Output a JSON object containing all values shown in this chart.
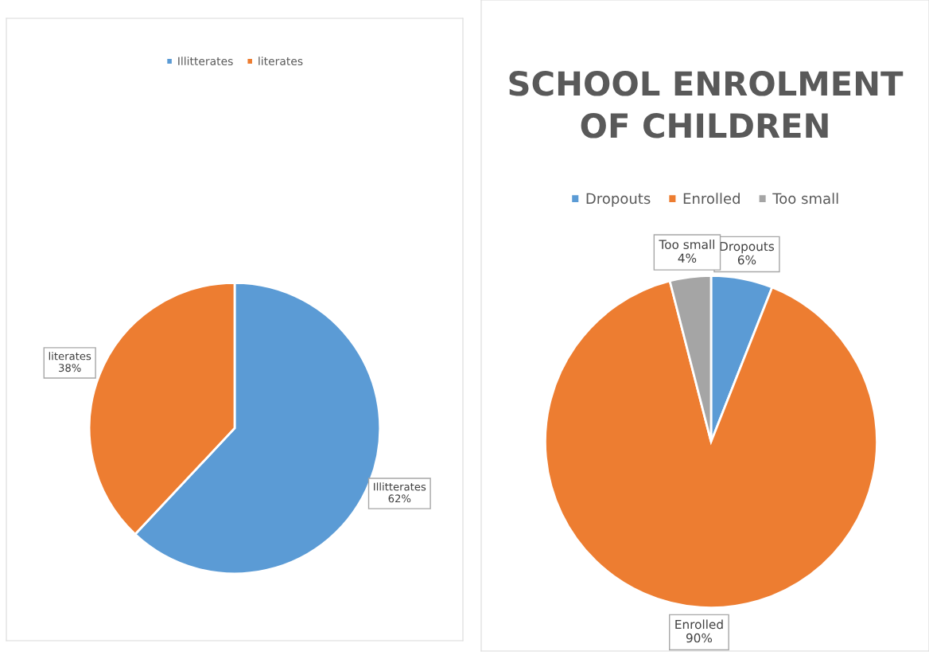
{
  "chart_data": [
    {
      "type": "pie",
      "categories": [
        "Illitterates",
        "literates"
      ],
      "values": [
        62,
        38
      ],
      "colors": [
        "#5b9bd5",
        "#ed7d31"
      ],
      "value_labels": [
        "62%",
        "38%"
      ],
      "legend": "top"
    },
    {
      "type": "pie",
      "title": "SCHOOL ENROLMENT OF CHILDREN",
      "categories": [
        "Dropouts",
        "Enrolled",
        "Too small"
      ],
      "values": [
        6,
        90,
        4
      ],
      "colors": [
        "#5b9bd5",
        "#ed7d31",
        "#a5a5a5"
      ],
      "value_labels": [
        "6%",
        "90%",
        "4%"
      ],
      "legend": "top"
    }
  ]
}
